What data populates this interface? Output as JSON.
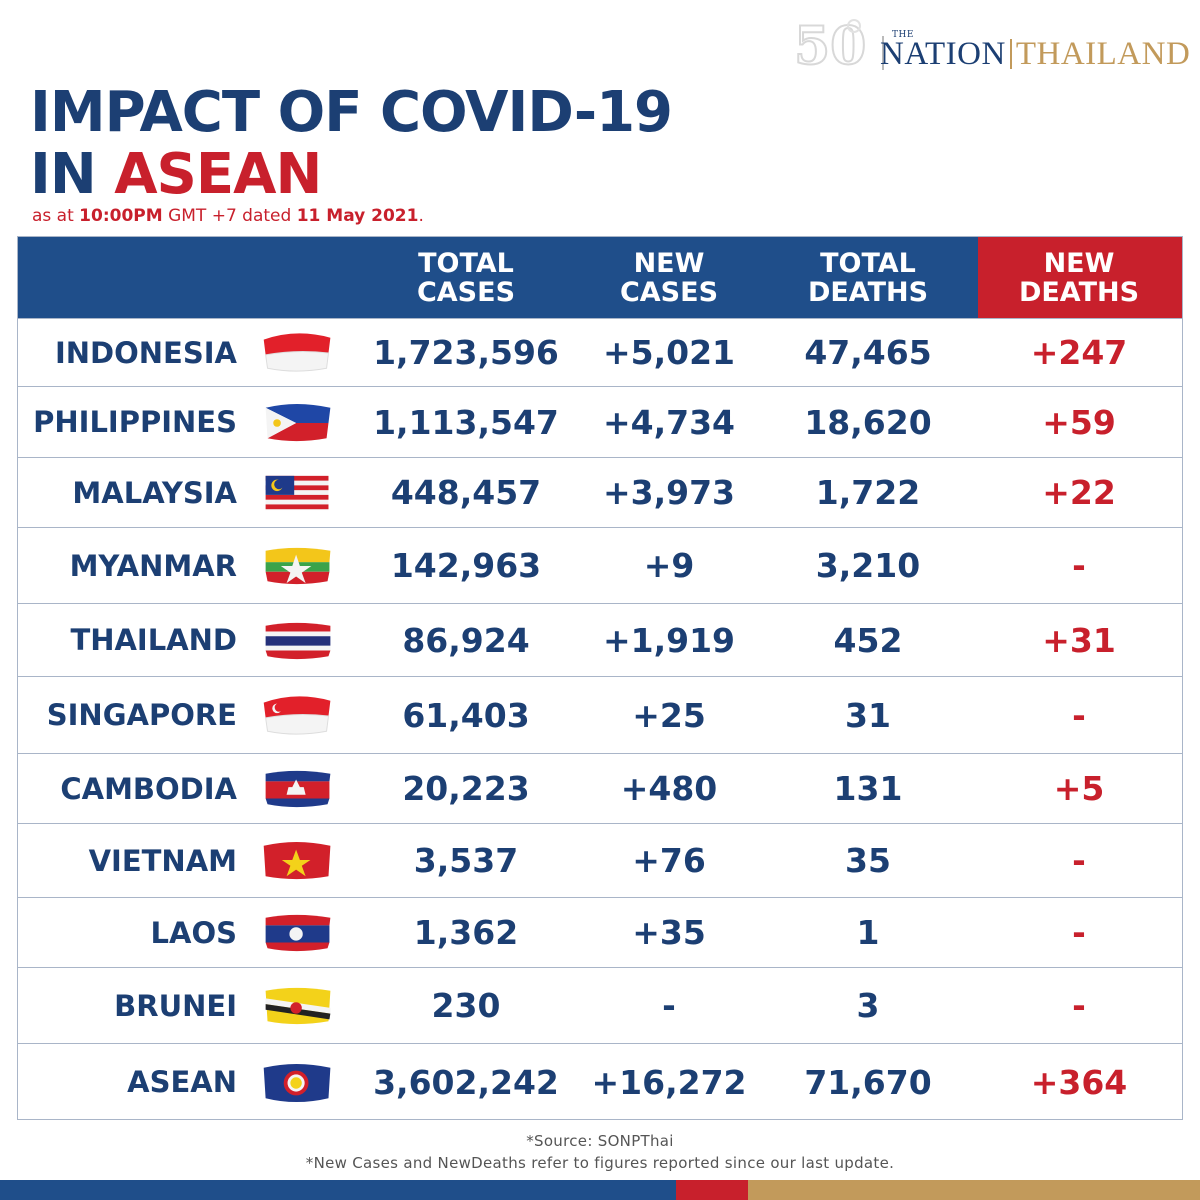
{
  "brand": {
    "the": "THE",
    "name_part1": "NATION",
    "name_part2": "THAILAND",
    "anniversary": "50"
  },
  "title": {
    "line1": "IMPACT OF COVID-19",
    "line2_prefix": "IN ",
    "line2_highlight": "ASEAN"
  },
  "subtitle": {
    "prefix": "as at ",
    "time": "10:00PM",
    "tz": " GMT +7 dated ",
    "date": "11 May 2021",
    "suffix": "."
  },
  "colors": {
    "navy": "#1f4e8a",
    "text_navy": "#1c3f73",
    "red": "#c8202c",
    "gold": "#c29a5b"
  },
  "chart_data": {
    "type": "table",
    "columns": [
      "TOTAL CASES",
      "NEW CASES",
      "TOTAL DEATHS",
      "NEW DEATHS"
    ],
    "header_lines": [
      [
        "TOTAL",
        "CASES"
      ],
      [
        "NEW",
        "CASES"
      ],
      [
        "TOTAL",
        "DEATHS"
      ],
      [
        "NEW",
        "DEATHS"
      ]
    ],
    "rows": [
      {
        "country": "INDONESIA",
        "flag": "indonesia-flag",
        "total_cases": "1,723,596",
        "new_cases": "+5,021",
        "total_deaths": "47,465",
        "new_deaths": "+247"
      },
      {
        "country": "PHILIPPINES",
        "flag": "philippines-flag",
        "total_cases": "1,113,547",
        "new_cases": "+4,734",
        "total_deaths": "18,620",
        "new_deaths": "+59"
      },
      {
        "country": "MALAYSIA",
        "flag": "malaysia-flag",
        "total_cases": "448,457",
        "new_cases": "+3,973",
        "total_deaths": "1,722",
        "new_deaths": "+22"
      },
      {
        "country": "MYANMAR",
        "flag": "myanmar-flag",
        "total_cases": "142,963",
        "new_cases": "+9",
        "total_deaths": "3,210",
        "new_deaths": "-"
      },
      {
        "country": "THAILAND",
        "flag": "thailand-flag",
        "total_cases": "86,924",
        "new_cases": "+1,919",
        "total_deaths": "452",
        "new_deaths": "+31"
      },
      {
        "country": "SINGAPORE",
        "flag": "singapore-flag",
        "total_cases": "61,403",
        "new_cases": "+25",
        "total_deaths": "31",
        "new_deaths": "-"
      },
      {
        "country": "CAMBODIA",
        "flag": "cambodia-flag",
        "total_cases": "20,223",
        "new_cases": "+480",
        "total_deaths": "131",
        "new_deaths": "+5"
      },
      {
        "country": "VIETNAM",
        "flag": "vietnam-flag",
        "total_cases": "3,537",
        "new_cases": "+76",
        "total_deaths": "35",
        "new_deaths": "-"
      },
      {
        "country": "LAOS",
        "flag": "laos-flag",
        "total_cases": "1,362",
        "new_cases": "+35",
        "total_deaths": "1",
        "new_deaths": "-"
      },
      {
        "country": "BRUNEI",
        "flag": "brunei-flag",
        "total_cases": "230",
        "new_cases": "-",
        "total_deaths": "3",
        "new_deaths": "-"
      },
      {
        "country": "ASEAN",
        "flag": "asean-flag",
        "total_cases": "3,602,242",
        "new_cases": "+16,272",
        "total_deaths": "71,670",
        "new_deaths": "+364"
      }
    ]
  },
  "footnotes": {
    "source": "*Source: SONPThai",
    "note": "*New Cases and NewDeaths refer to figures reported since our last update."
  }
}
